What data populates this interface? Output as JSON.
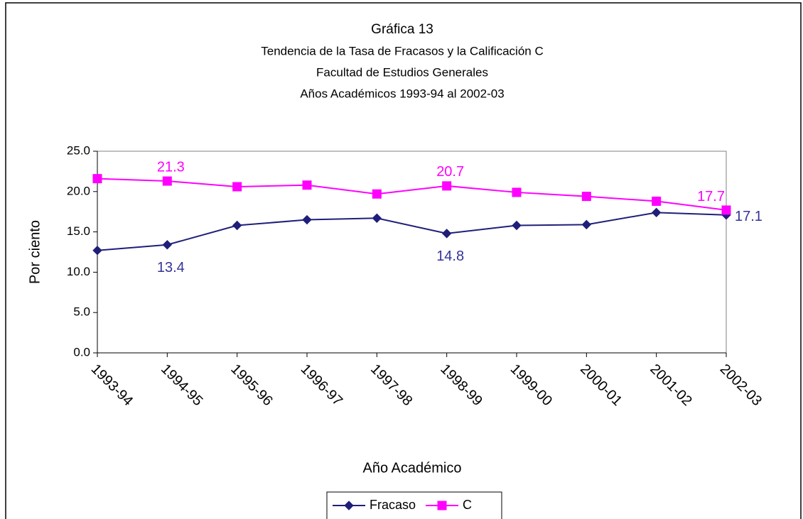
{
  "chart_data": {
    "type": "line",
    "title": "Gráfica 13",
    "subtitles": [
      "Tendencia de la Tasa de Fracasos y la Calificación C",
      "Facultad de Estudios Generales",
      "Años Académicos 1993-94 al 2002-03"
    ],
    "x_label": "Año Académico",
    "y_label": "Por ciento",
    "categories": [
      "1993-94",
      "1994-95",
      "1995-96",
      "1996-97",
      "1997-98",
      "1998-99",
      "1999-00",
      "2000-01",
      "2001-02",
      "2002-03"
    ],
    "series": [
      {
        "name": "Fracaso",
        "color": "#1f1f7a",
        "marker": "diamond",
        "values": [
          12.7,
          13.4,
          15.8,
          16.5,
          16.7,
          14.8,
          15.8,
          15.9,
          17.4,
          17.1
        ],
        "value_labels": [
          null,
          "13.4",
          null,
          null,
          null,
          "14.8",
          null,
          null,
          null,
          "17.1"
        ],
        "label_color": "#333399"
      },
      {
        "name": "C",
        "color": "#ff00ff",
        "marker": "square",
        "values": [
          21.6,
          21.3,
          20.6,
          20.8,
          19.7,
          20.7,
          19.9,
          19.4,
          18.8,
          17.7
        ],
        "value_labels": [
          null,
          "21.3",
          null,
          null,
          null,
          "20.7",
          null,
          null,
          null,
          "17.7"
        ],
        "label_color": "#ff00ff"
      }
    ],
    "ylim": [
      0,
      25
    ],
    "yticks": [
      {
        "value": 0,
        "label": "0.0"
      },
      {
        "value": 5,
        "label": "5.0"
      },
      {
        "value": 10,
        "label": "10.0"
      },
      {
        "value": 15,
        "label": "15.0"
      },
      {
        "value": 20,
        "label": "20.0"
      },
      {
        "value": 25,
        "label": "25.0"
      }
    ],
    "legend": "bottom"
  }
}
